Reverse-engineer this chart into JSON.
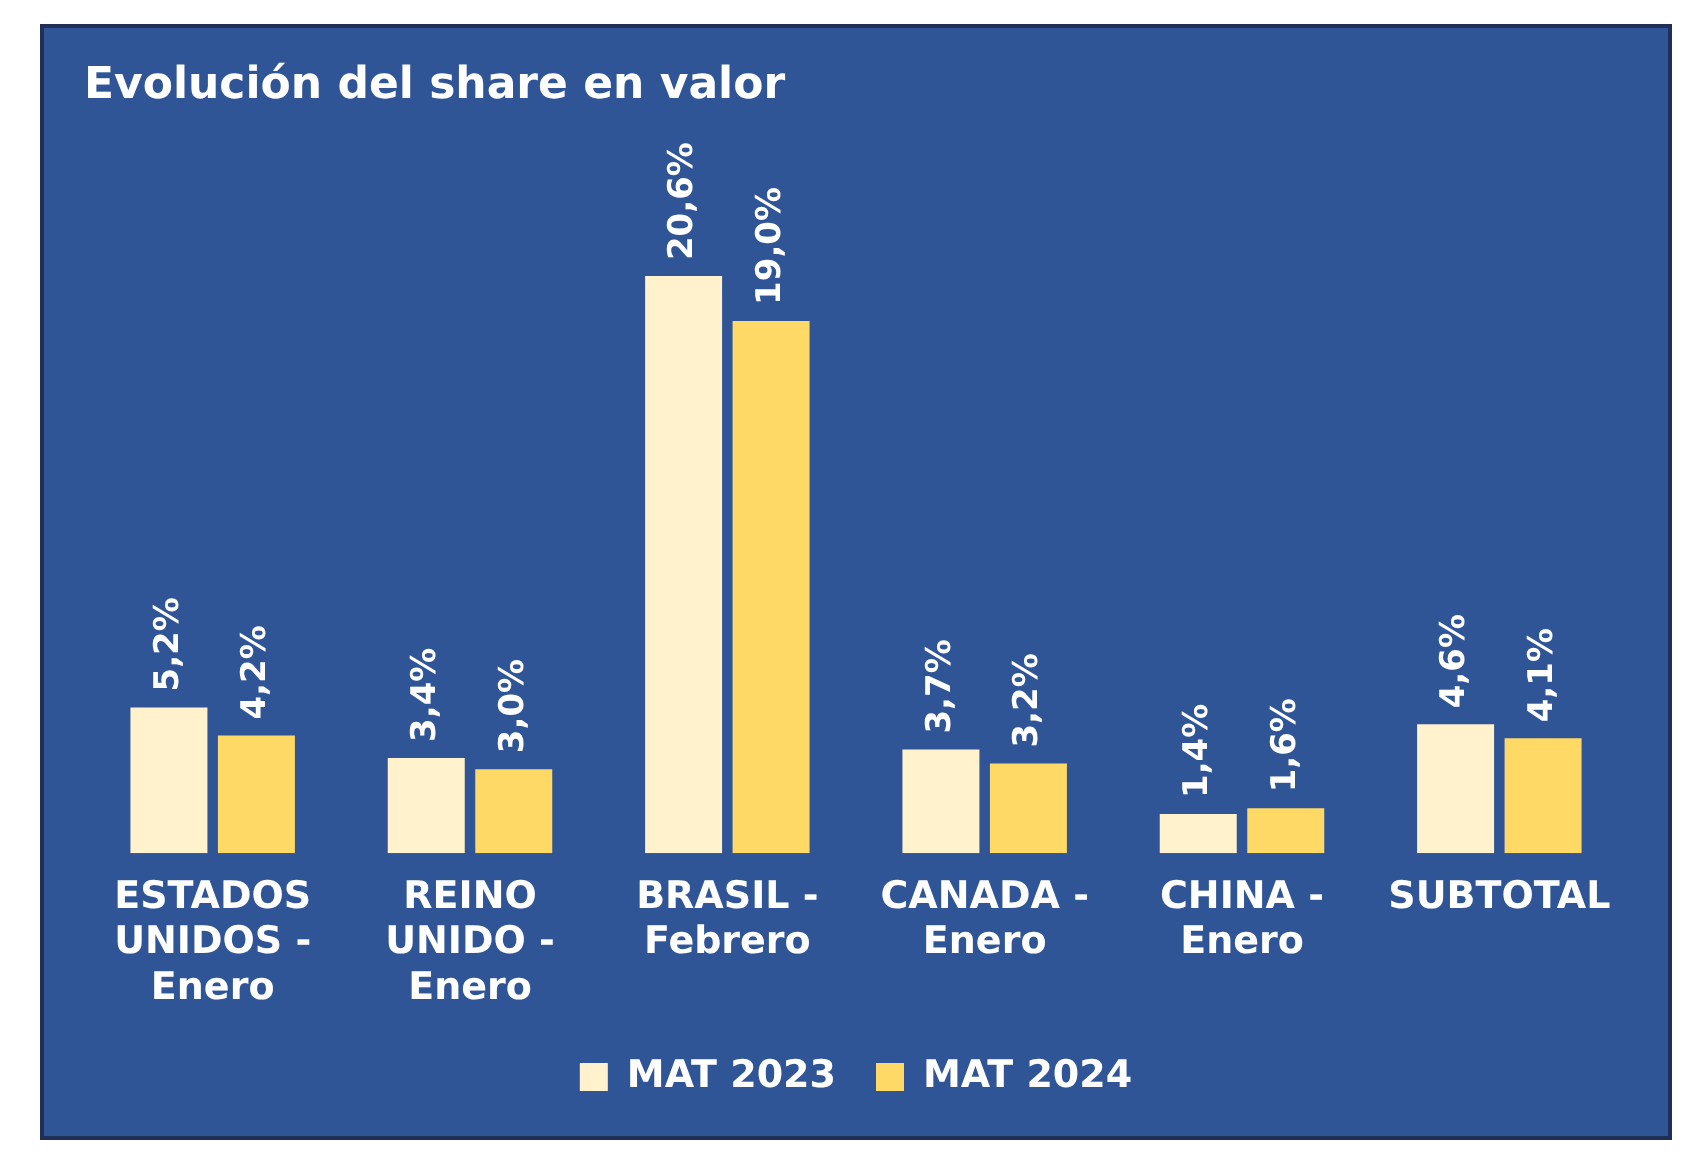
{
  "chart_data": {
    "type": "bar",
    "title": "Evolución del share en valor",
    "categories": [
      "ESTADOS UNIDOS - Enero",
      "REINO UNIDO - Enero",
      "BRASIL - Febrero",
      "CANADA - Enero",
      "CHINA - Enero",
      "SUBTOTAL"
    ],
    "series": [
      {
        "name": "MAT 2023",
        "color": "#fff2cc",
        "values": [
          5.2,
          3.4,
          20.6,
          3.7,
          1.4,
          4.6
        ],
        "value_labels": [
          "5,2%",
          "3,4%",
          "20,6%",
          "3,7%",
          "1,4%",
          "4,6%"
        ]
      },
      {
        "name": "MAT 2024",
        "color": "#ffd966",
        "values": [
          4.2,
          3.0,
          19.0,
          3.2,
          1.6,
          4.1
        ],
        "value_labels": [
          "4,2%",
          "3,0%",
          "19,0%",
          "3,2%",
          "1,6%",
          "4,1%"
        ]
      }
    ],
    "legend": "bottom",
    "grid": false
  }
}
